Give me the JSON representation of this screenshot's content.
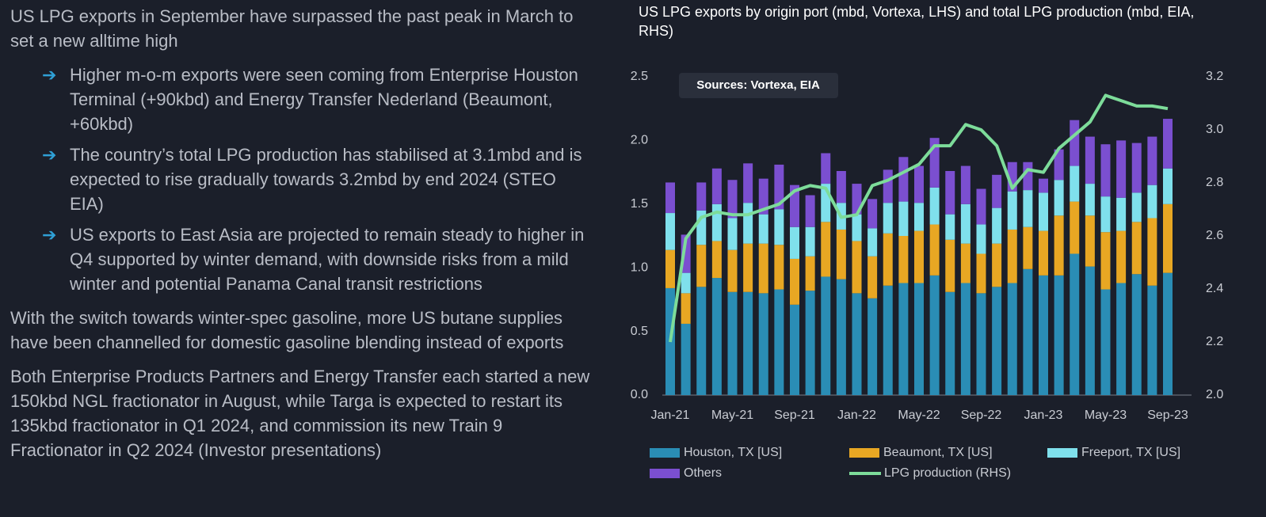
{
  "text": {
    "heading": "US LPG exports in September have surpassed the past peak in March to set a new alltime high",
    "bullets": [
      "Higher m-o-m exports were seen coming from Enterprise Houston Terminal (+90kbd) and Energy Transfer Nederland (Beaumont, +60kbd)",
      "The country’s total LPG production has stabilised at 3.1mbd and is expected to rise gradually towards 3.2mbd by end 2024 (STEO EIA)",
      "US exports to East Asia are projected to remain steady to higher in Q4 supported by winter demand, with downside risks from a mild winter and potential Panama Canal transit restrictions"
    ],
    "paragraphs": [
      "With the switch towards winter-spec gasoline, more US butane supplies have been channelled for domestic gasoline blending instead of exports",
      "Both Enterprise Products Partners and Energy Transfer each started a new 150kbd NGL fractionator in August, while Targa is expected to restart its 135kbd fractionator in Q1 2024, and commission its new Train 9 Fractionator in Q2 2024 (Investor presentations)"
    ]
  },
  "chart_data": {
    "type": "bar",
    "stacked": true,
    "title": "US LPG exports by origin port (mbd, Vortexa, LHS) and total LPG production (mbd, EIA, RHS)",
    "annotation": "Sources: Vortexa, EIA",
    "categories": [
      "Jan-21",
      null,
      null,
      null,
      "May-21",
      null,
      null,
      null,
      "Sep-21",
      null,
      null,
      null,
      "Jan-22",
      null,
      null,
      null,
      "May-22",
      null,
      null,
      null,
      "Sep-22",
      null,
      null,
      null,
      "Jan-23",
      null,
      null,
      null,
      "May-23",
      null,
      null,
      null,
      "Sep-23"
    ],
    "series": [
      {
        "name": "Houston, TX [US]",
        "color": "#2a8db5",
        "values": [
          0.84,
          0.56,
          0.85,
          0.92,
          0.81,
          0.81,
          0.8,
          0.83,
          0.71,
          0.82,
          0.93,
          0.91,
          0.8,
          0.76,
          0.86,
          0.88,
          0.88,
          0.94,
          0.81,
          0.88,
          0.8,
          0.85,
          0.88,
          0.99,
          0.94,
          0.94,
          1.11,
          1.01,
          0.83,
          0.88,
          0.95,
          0.86,
          0.96
        ]
      },
      {
        "name": "Beaumont, TX [US]",
        "color": "#e8a723",
        "values": [
          0.3,
          0.24,
          0.33,
          0.29,
          0.33,
          0.38,
          0.39,
          0.35,
          0.36,
          0.27,
          0.43,
          0.39,
          0.41,
          0.33,
          0.41,
          0.37,
          0.41,
          0.4,
          0.41,
          0.31,
          0.31,
          0.34,
          0.42,
          0.33,
          0.35,
          0.47,
          0.41,
          0.4,
          0.45,
          0.41,
          0.41,
          0.53,
          0.54
        ]
      },
      {
        "name": "Freeport, TX [US]",
        "color": "#7fe0ec",
        "values": [
          0.29,
          0.16,
          0.27,
          0.29,
          0.25,
          0.32,
          0.23,
          0.28,
          0.25,
          0.23,
          0.3,
          0.21,
          0.21,
          0.22,
          0.24,
          0.27,
          0.22,
          0.29,
          0.2,
          0.31,
          0.23,
          0.28,
          0.3,
          0.29,
          0.3,
          0.28,
          0.28,
          0.25,
          0.28,
          0.26,
          0.23,
          0.26,
          0.28
        ]
      },
      {
        "name": "Others",
        "color": "#7b4fd0",
        "values": [
          0.24,
          0.3,
          0.22,
          0.28,
          0.3,
          0.31,
          0.28,
          0.35,
          0.33,
          0.25,
          0.24,
          0.25,
          0.24,
          0.23,
          0.26,
          0.35,
          0.29,
          0.39,
          0.34,
          0.3,
          0.28,
          0.26,
          0.23,
          0.22,
          0.11,
          0.24,
          0.36,
          0.37,
          0.41,
          0.45,
          0.39,
          0.38,
          0.39
        ]
      },
      {
        "name": "LPG production (RHS)",
        "color": "#7ddc9a",
        "type": "line",
        "axis": "y2",
        "values": [
          2.2,
          2.59,
          2.67,
          2.69,
          2.68,
          2.68,
          2.7,
          2.72,
          2.77,
          2.79,
          2.78,
          2.67,
          2.68,
          2.79,
          2.81,
          2.84,
          2.87,
          2.94,
          2.94,
          3.02,
          3.0,
          2.94,
          2.78,
          2.85,
          2.84,
          2.93,
          2.98,
          3.03,
          3.13,
          3.11,
          3.09,
          3.09,
          3.08
        ]
      }
    ],
    "ylim": [
      0,
      2.5
    ],
    "yticks": [
      {
        "value": 0,
        "label": "0.0"
      },
      0.5,
      {
        "value": 1,
        "label": "1.0"
      },
      1.5,
      {
        "value": 2,
        "label": "2.0"
      },
      2.5
    ],
    "y2lim": [
      2.0,
      3.2
    ],
    "y2ticks": [
      {
        "value": 2,
        "label": "2.0"
      },
      2.2,
      2.4,
      2.6,
      2.8,
      {
        "value": 3,
        "label": "3.0"
      },
      3.2
    ],
    "grid": false
  }
}
